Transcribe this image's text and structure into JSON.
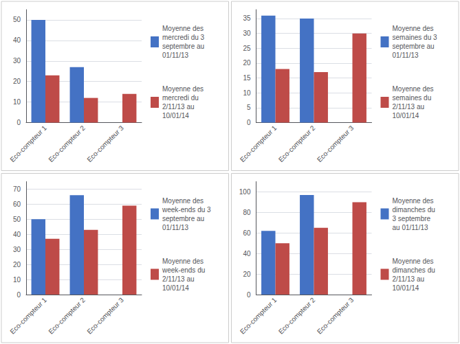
{
  "chart_data": [
    {
      "type": "bar",
      "categories": [
        "Eco-compteur 1",
        "Eco-compteur 2",
        "Eco-compteur 3"
      ],
      "series": [
        {
          "name": "Moyenne des\nmercredi du 3\nseptembre au\n01/11/13",
          "color": "#4472C4",
          "values": [
            50,
            27,
            0
          ]
        },
        {
          "name": "Moyenne des\nmercredi du\n2/11/13 au\n10/01/14",
          "color": "#BE4B48",
          "values": [
            23,
            12,
            14
          ]
        }
      ],
      "ylim": [
        0,
        55
      ],
      "yticks": [
        0,
        10,
        20,
        30,
        40,
        50
      ],
      "grid": true,
      "legend": "right"
    },
    {
      "type": "bar",
      "categories": [
        "Eco-compteur 1",
        "Eco-compteur 2",
        "Eco-compteur 3"
      ],
      "series": [
        {
          "name": "Moyenne des\nsemaines du 3\nseptembre au\n01/11/13",
          "color": "#4472C4",
          "values": [
            36,
            35,
            0
          ]
        },
        {
          "name": "Moyenne des\nsemaines du\n2/11/13 au\n10/01/14",
          "color": "#BE4B48",
          "values": [
            18,
            17,
            30
          ]
        }
      ],
      "ylim": [
        0,
        38
      ],
      "yticks": [
        0,
        5,
        10,
        15,
        20,
        25,
        30,
        35
      ],
      "grid": true,
      "legend": "right"
    },
    {
      "type": "bar",
      "categories": [
        "Eco-compteur 1",
        "Eco-compteur 2",
        "Eco-compteur 3"
      ],
      "series": [
        {
          "name": "Moyenne des\nweek-ends du 3\nseptembre au\n01/11/13",
          "color": "#4472C4",
          "values": [
            50,
            66,
            0
          ]
        },
        {
          "name": "Moyenne des\nweek-ends du\n2/11/13 au\n10/01/14",
          "color": "#BE4B48",
          "values": [
            37,
            43,
            59
          ]
        }
      ],
      "ylim": [
        0,
        75
      ],
      "yticks": [
        0,
        10,
        20,
        30,
        40,
        50,
        60,
        70
      ],
      "grid": true,
      "legend": "right"
    },
    {
      "type": "bar",
      "categories": [
        "Eco-compteur 1",
        "Eco-compteur 2",
        "Eco-compteur 3"
      ],
      "series": [
        {
          "name": "Moyenne des\ndimanches du\n3 septembre\nau 01/11/13",
          "color": "#4472C4",
          "values": [
            62,
            97,
            0
          ]
        },
        {
          "name": "Moyenne des\ndimanches du\n2/11/13 au\n10/01/14",
          "color": "#BE4B48",
          "values": [
            50,
            65,
            90
          ]
        }
      ],
      "ylim": [
        0,
        110
      ],
      "yticks": [
        0,
        20,
        40,
        60,
        80,
        100
      ],
      "grid": true,
      "legend": "right"
    }
  ]
}
